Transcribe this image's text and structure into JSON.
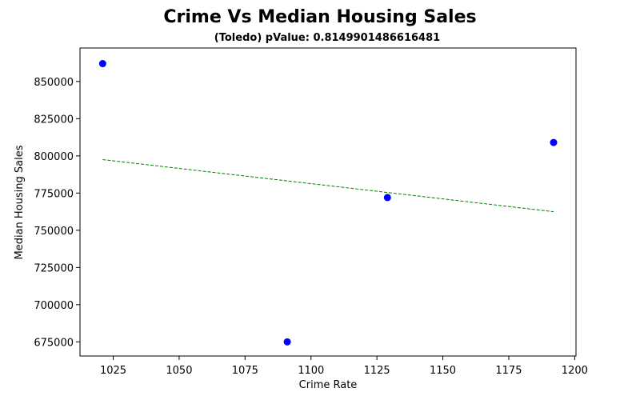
{
  "chart_data": {
    "type": "scatter",
    "title": "Crime Vs Median Housing Sales",
    "subtitle": "(Toledo) pValue: 0.8149901486616481",
    "xlabel": "Crime Rate",
    "ylabel": "Median Housing Sales",
    "xlim": [
      1012.4,
      1200.5
    ],
    "ylim": [
      665500,
      872500
    ],
    "x_ticks": [
      1025,
      1050,
      1075,
      1100,
      1125,
      1150,
      1175,
      1200
    ],
    "y_ticks": [
      675000,
      700000,
      725000,
      750000,
      775000,
      800000,
      825000,
      850000
    ],
    "grid": false,
    "points": {
      "x": [
        1021,
        1091,
        1129,
        1192
      ],
      "y": [
        862000,
        675000,
        772000,
        809000
      ],
      "color": "#0000ff"
    },
    "trendline": {
      "x": [
        1021,
        1192
      ],
      "y": [
        797500,
        762500
      ],
      "color": "#008000",
      "style": "dashed"
    }
  }
}
